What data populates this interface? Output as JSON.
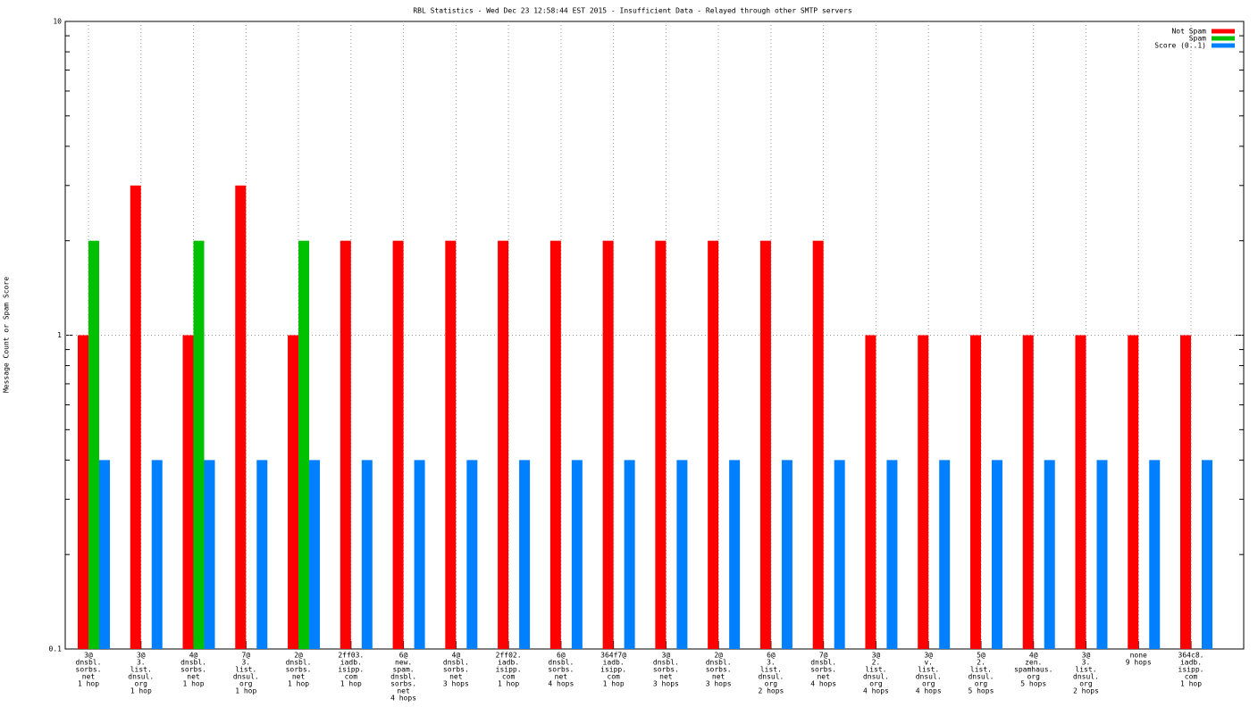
{
  "chart_data": {
    "type": "bar",
    "title": "RBL Statistics - Wed Dec 23 12:58:44 EST 2015 - Insufficient Data - Relayed through other SMTP servers",
    "y_label": "Message Count or Spam Score",
    "categories": [
      [
        "3@",
        "dnsbl.",
        "sorbs.",
        "net",
        "1 hop"
      ],
      [
        "3@",
        "3.",
        "list.",
        "dnsul.",
        "org",
        "1 hop"
      ],
      [
        "4@",
        "dnsbl.",
        "sorbs.",
        "net",
        "1 hop"
      ],
      [
        "7@",
        "3.",
        "list.",
        "dnsul.",
        "org",
        "1 hop"
      ],
      [
        "2@",
        "dnsbl.",
        "sorbs.",
        "net",
        "1 hop"
      ],
      [
        "2ff03.",
        "iadb.",
        "isipp.",
        "com",
        "1 hop"
      ],
      [
        "6@",
        "new.",
        "spam.",
        "dnsbl.",
        "sorbs.",
        "net",
        "4 hops"
      ],
      [
        "4@",
        "dnsbl.",
        "sorbs.",
        "net",
        "3 hops"
      ],
      [
        "2ff02.",
        "iadb.",
        "isipp.",
        "com",
        "1 hop"
      ],
      [
        "6@",
        "dnsbl.",
        "sorbs.",
        "net",
        "4 hops"
      ],
      [
        "364f7@",
        "iadb.",
        "isipp.",
        "com",
        "1 hop"
      ],
      [
        "3@",
        "dnsbl.",
        "sorbs.",
        "net",
        "3 hops"
      ],
      [
        "2@",
        "dnsbl.",
        "sorbs.",
        "net",
        "3 hops"
      ],
      [
        "6@",
        "3.",
        "list.",
        "dnsul.",
        "org",
        "2 hops"
      ],
      [
        "7@",
        "dnsbl.",
        "sorbs.",
        "net",
        "4 hops"
      ],
      [
        "3@",
        "2.",
        "list.",
        "dnsul.",
        "org",
        "4 hops"
      ],
      [
        "3@",
        "v.",
        "list.",
        "dnsul.",
        "org",
        "4 hops"
      ],
      [
        "5@",
        "2.",
        "list.",
        "dnsul.",
        "org",
        "5 hops"
      ],
      [
        "4@",
        "zen.",
        "spamhaus.",
        "org",
        "5 hops"
      ],
      [
        "3@",
        "3.",
        "list.",
        "dnsul.",
        "org",
        "2 hops"
      ],
      [
        "none",
        "9 hops"
      ],
      [
        "364c8.",
        "iadb.",
        "isipp.",
        "com",
        "1 hop"
      ]
    ],
    "series": [
      {
        "name": "Not Spam",
        "color": "#ff0000",
        "values": [
          1,
          3,
          1,
          3,
          1,
          2,
          2,
          2,
          2,
          2,
          2,
          2,
          2,
          2,
          2,
          1,
          1,
          1,
          1,
          1,
          1,
          1
        ]
      },
      {
        "name": "Spam",
        "color": "#00c000",
        "values": [
          2,
          null,
          2,
          null,
          2,
          null,
          null,
          null,
          null,
          null,
          null,
          null,
          null,
          null,
          null,
          null,
          null,
          null,
          null,
          null,
          null,
          null
        ]
      },
      {
        "name": "Score (0..1)",
        "color": "#0080ff",
        "values": [
          0.4,
          0.4,
          0.4,
          0.4,
          0.4,
          0.4,
          0.4,
          0.4,
          0.4,
          0.4,
          0.4,
          0.4,
          0.4,
          0.4,
          0.4,
          0.4,
          0.4,
          0.4,
          0.4,
          0.4,
          0.4,
          0.4
        ]
      }
    ],
    "log_scale": "y",
    "ylim": [
      0.1,
      10
    ],
    "yticks": [
      0.1,
      1,
      10
    ],
    "yminorticks": [
      0.2,
      0.3,
      0.4,
      0.5,
      0.6,
      0.7,
      0.8,
      0.9,
      2,
      3,
      4,
      5,
      6,
      7,
      8,
      9
    ],
    "grid": true,
    "legend": "top-right"
  }
}
